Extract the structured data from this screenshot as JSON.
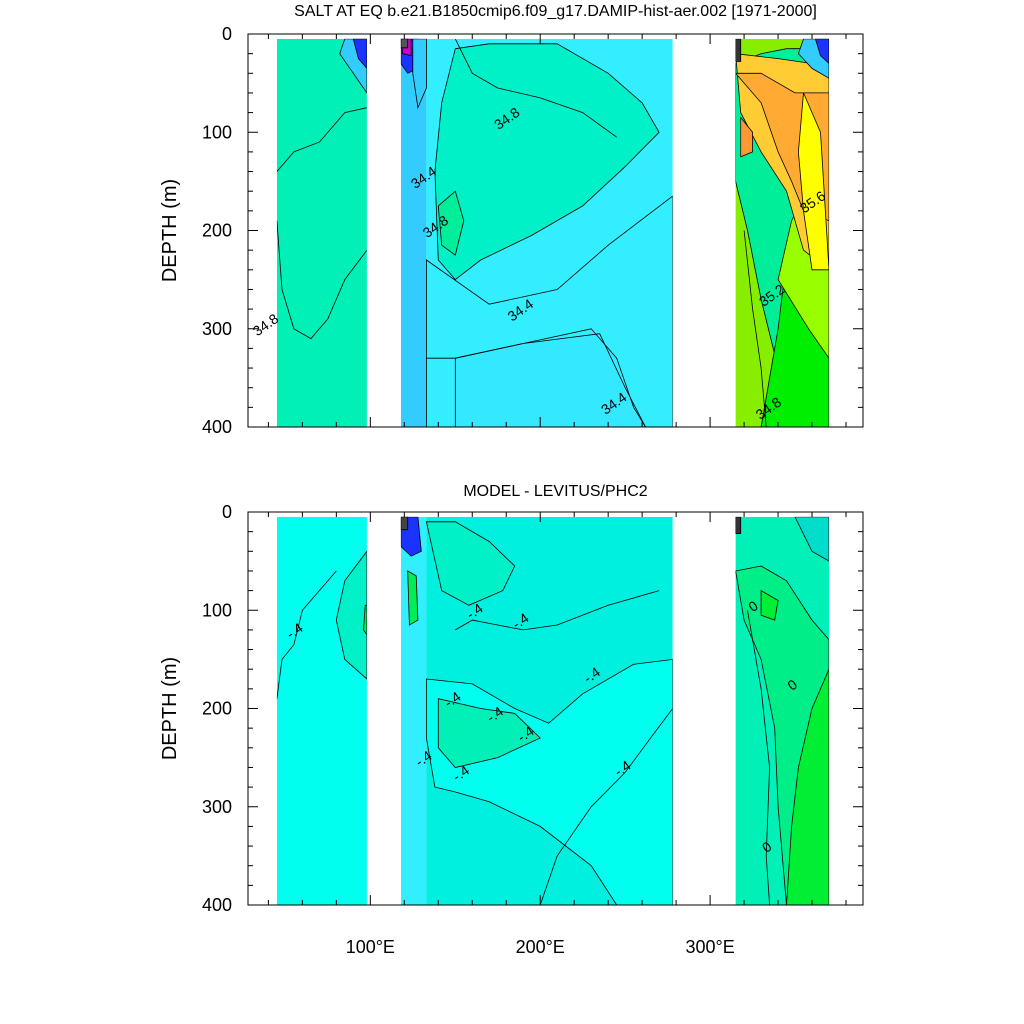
{
  "chart_data": [
    {
      "type": "contour",
      "title": "SALT AT EQ b.e21.B1850cmip6.f09_g17.DAMIP-hist-aer.002 [1971-2000]",
      "xlabel": "",
      "ylabel": "DEPTH (m)",
      "xlim": [
        28,
        390
      ],
      "ylim": [
        400,
        0
      ],
      "x_ticks": [
        100,
        200,
        300
      ],
      "x_tick_labels": [
        "100°E",
        "200°E",
        "300°E"
      ],
      "y_ticks": [
        0,
        100,
        200,
        300,
        400
      ],
      "y_tick_labels": [
        "0",
        "100",
        "200",
        "300",
        "400"
      ],
      "y_axis_reversed": true,
      "contour_labels": [
        {
          "text": "34.8",
          "x": 40,
          "y": 300
        },
        {
          "text": "34.4",
          "x": 133,
          "y": 150
        },
        {
          "text": "34.8",
          "x": 140,
          "y": 200
        },
        {
          "text": "34.8",
          "x": 182,
          "y": 90
        },
        {
          "text": "34.4",
          "x": 190,
          "y": 285
        },
        {
          "text": "34.4",
          "x": 245,
          "y": 380
        },
        {
          "text": "35.6",
          "x": 362,
          "y": 175
        },
        {
          "text": "35.2",
          "x": 338,
          "y": 270
        },
        {
          "text": "34.8",
          "x": 336,
          "y": 385
        }
      ],
      "regions": [
        {
          "name": "indian",
          "x": [
            45,
            98
          ],
          "fill": "#00f0b8"
        },
        {
          "name": "maritime",
          "x": [
            118,
            133
          ],
          "fill": "#33ccff"
        },
        {
          "name": "pacific",
          "x": [
            133,
            278
          ],
          "fill": "#33eeff"
        },
        {
          "name": "atlantic",
          "x": [
            315,
            370
          ],
          "fill": "#88ee00"
        }
      ],
      "colors": {
        "fresh": "#1a33ff",
        "very_fresh": "#7a00cc",
        "mid": "#00f0b8",
        "pacific": "#00ffee",
        "deep_blue": "#33ccff",
        "green": "#00ee00",
        "lime": "#99ff00",
        "yellow": "#ffff00",
        "orange": "#ffaa33",
        "gold": "#ffcc33",
        "dark": "#555555",
        "magenta": "#cc00cc"
      }
    },
    {
      "type": "contour",
      "title": "MODEL - LEVITUS/PHC2",
      "xlabel": "",
      "ylabel": "DEPTH (m)",
      "xlim": [
        28,
        390
      ],
      "ylim": [
        400,
        0
      ],
      "x_ticks": [
        100,
        200,
        300
      ],
      "x_tick_labels": [
        "100°E",
        "200°E",
        "300°E"
      ],
      "y_ticks": [
        0,
        100,
        200,
        300,
        400
      ],
      "y_tick_labels": [
        "0",
        "100",
        "200",
        "300",
        "400"
      ],
      "y_axis_reversed": true,
      "contour_labels": [
        {
          "text": "-.4",
          "x": 57,
          "y": 125
        },
        {
          "text": "-.4",
          "x": 163,
          "y": 105
        },
        {
          "text": "-.4",
          "x": 190,
          "y": 115
        },
        {
          "text": "-.4",
          "x": 232,
          "y": 170
        },
        {
          "text": "-.4",
          "x": 150,
          "y": 195
        },
        {
          "text": "-.4",
          "x": 175,
          "y": 210
        },
        {
          "text": "-.4",
          "x": 193,
          "y": 230
        },
        {
          "text": "-.4",
          "x": 133,
          "y": 255
        },
        {
          "text": "-.4",
          "x": 155,
          "y": 270
        },
        {
          "text": "-.4",
          "x": 250,
          "y": 265
        },
        {
          "text": "0",
          "x": 327,
          "y": 100
        },
        {
          "text": "0",
          "x": 350,
          "y": 180
        },
        {
          "text": "0",
          "x": 335,
          "y": 345
        }
      ],
      "regions": [
        {
          "name": "indian",
          "x": [
            45,
            98
          ],
          "fill": "#00ffee"
        },
        {
          "name": "maritime",
          "x": [
            118,
            133
          ],
          "fill": "#33eeff"
        },
        {
          "name": "pacific",
          "x": [
            133,
            278
          ],
          "fill": "#00f0e0"
        },
        {
          "name": "atlantic",
          "x": [
            315,
            370
          ],
          "fill": "#00f0b8"
        }
      ],
      "colors": {
        "base": "#00ffee",
        "teal": "#00f0c8",
        "green": "#00ee33",
        "lightgreen": "#22ee88",
        "blue": "#1a33ff",
        "dark": "#444444"
      }
    }
  ]
}
